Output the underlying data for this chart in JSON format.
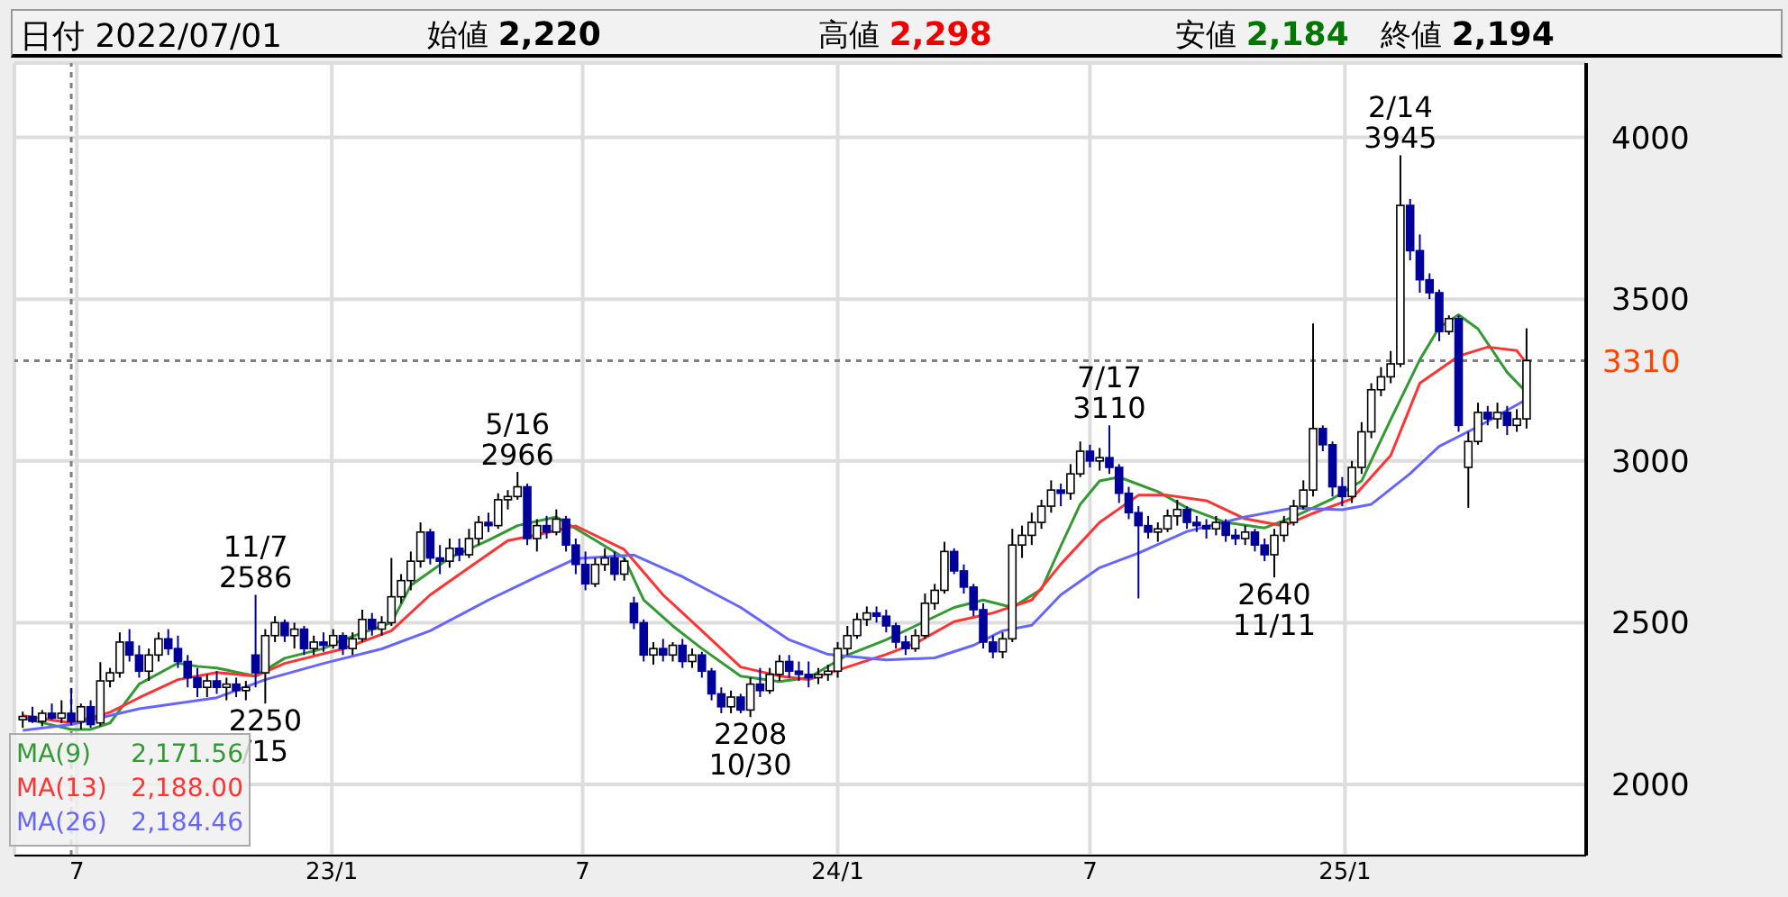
{
  "chart_data": {
    "type": "candlestick",
    "title": "日付 2022/07/01",
    "colors": [
      "#ffffff",
      "#00009a",
      "#ffffff",
      "#00009a",
      "#ffffff",
      "#00009a",
      "#ffffff",
      "#00009a",
      "#ffffff",
      "#ffffff",
      "#ffffff",
      "#00009a",
      "#00009a",
      "#ffffff",
      "#ffffff",
      "#00009a",
      "#00009a",
      "#00009a",
      "#00009a",
      "#ffffff",
      "#00009a",
      "#ffffff",
      "#00009a",
      "#ffffff",
      "#00009a",
      "#ffffff",
      "#ffffff",
      "#00009a",
      "#ffffff",
      "#00009a",
      "#ffffff",
      "#00009a",
      "#ffffff",
      "#00009a",
      "#ffffff",
      "#ffffff",
      "#00009a",
      "#ffffff",
      "#ffffff",
      "#ffffff",
      "#ffffff",
      "#ffffff",
      "#00009a",
      "#00009a",
      "#ffffff",
      "#00009a",
      "#ffffff",
      "#ffffff",
      "#00009a",
      "#ffffff",
      "#ffffff",
      "#ffffff",
      "#00009a",
      "#ffffff",
      "#00009a",
      "#ffffff",
      "#00009a",
      "#00009a",
      "#00009a",
      "#ffffff",
      "#ffffff",
      "#00009a",
      "#ffffff",
      "#00009a",
      "#00009a",
      "#ffffff",
      "#00009a",
      "#ffffff",
      "#00009a",
      "#ffffff",
      "#00009a",
      "#00009a",
      "#00009a",
      "#ffffff",
      "#00009a",
      "#ffffff",
      "#00009a",
      "#ffffff",
      "#ffffff",
      "#00009a",
      "#00009a",
      "#00009a",
      "#ffffff",
      "#ffffff",
      "#ffffff",
      "#ffffff",
      "#ffffff",
      "#ffffff",
      "#00009a",
      "#00009a",
      "#00009a",
      "#00009a",
      "#ffffff",
      "#ffffff",
      "#ffffff",
      "#ffffff",
      "#00009a",
      "#00009a",
      "#00009a",
      "#00009a",
      "#00009a",
      "#ffffff",
      "#ffffff",
      "#ffffff",
      "#ffffff",
      "#ffffff",
      "#ffffff",
      "#00009a",
      "#ffffff",
      "#ffffff",
      "#00009a",
      "#ffffff",
      "#00009a",
      "#00009a",
      "#00009a",
      "#00009a",
      "#00009a",
      "#ffffff",
      "#ffffff",
      "#ffffff",
      "#00009a",
      "#00009a",
      "#00009a",
      "#ffffff",
      "#00009a",
      "#00009a",
      "#ffffff",
      "#00009a",
      "#00009a",
      "#ffffff",
      "#ffffff",
      "#ffffff",
      "#ffffff",
      "#ffffff",
      "#00009a",
      "#00009a",
      "#00009a",
      "#ffffff",
      "#ffffff",
      "#ffffff",
      "#ffffff",
      "#ffffff",
      "#ffffff",
      "#00009a",
      "#00009a",
      "#00009a",
      "#00009a",
      "#ffffff",
      "#00009a",
      "#ffffff",
      "#ffffff",
      "#00009a",
      "#ffffff",
      "#00009a",
      "#ffffff",
      "#ffffff"
    ],
    "x": [
      "2022-05-23",
      "2022-05-30",
      "2022-06-06",
      "2022-06-13",
      "2022-06-20",
      "2022-06-27",
      "2022-07-04",
      "2022-07-11",
      "2022-07-18",
      "2022-07-25",
      "2022-08-01",
      "2022-08-08",
      "2022-08-15",
      "2022-08-22",
      "2022-08-29",
      "2022-09-05",
      "2022-09-12",
      "2022-09-19",
      "2022-09-26",
      "2022-10-03",
      "2022-10-10",
      "2022-10-17",
      "2022-10-24",
      "2022-10-31",
      "2022-11-07",
      "2022-11-14",
      "2022-11-21",
      "2022-11-28",
      "2022-12-05",
      "2022-12-12",
      "2022-12-19",
      "2022-12-26",
      "2023-01-02",
      "2023-01-09",
      "2023-01-16",
      "2023-01-23",
      "2023-01-30",
      "2023-02-06",
      "2023-02-13",
      "2023-02-20",
      "2023-02-27",
      "2023-03-06",
      "2023-03-13",
      "2023-03-20",
      "2023-03-27",
      "2023-04-03",
      "2023-04-10",
      "2023-04-17",
      "2023-04-24",
      "2023-05-01",
      "2023-05-08",
      "2023-05-15",
      "2023-05-22",
      "2023-05-29",
      "2023-06-05",
      "2023-06-12",
      "2023-06-19",
      "2023-06-26",
      "2023-07-03",
      "2023-07-10",
      "2023-07-17",
      "2023-07-24",
      "2023-07-31",
      "2023-08-07",
      "2023-08-14",
      "2023-08-21",
      "2023-08-28",
      "2023-09-04",
      "2023-09-11",
      "2023-09-18",
      "2023-09-25",
      "2023-10-02",
      "2023-10-09",
      "2023-10-16",
      "2023-10-23",
      "2023-10-30",
      "2023-11-06",
      "2023-11-13",
      "2023-11-20",
      "2023-11-27",
      "2023-12-04",
      "2023-12-11",
      "2023-12-18",
      "2023-12-25",
      "2024-01-01",
      "2024-01-08",
      "2024-01-15",
      "2024-01-22",
      "2024-01-29",
      "2024-02-05",
      "2024-02-12",
      "2024-02-19",
      "2024-02-26",
      "2024-03-04",
      "2024-03-11",
      "2024-03-18",
      "2024-03-25",
      "2024-04-01",
      "2024-04-08",
      "2024-04-15",
      "2024-04-22",
      "2024-04-29",
      "2024-05-06",
      "2024-05-13",
      "2024-05-20",
      "2024-05-27",
      "2024-06-03",
      "2024-06-10",
      "2024-06-17",
      "2024-06-24",
      "2024-07-01",
      "2024-07-08",
      "2024-07-15",
      "2024-07-22",
      "2024-07-29",
      "2024-08-05",
      "2024-08-12",
      "2024-08-19",
      "2024-08-26",
      "2024-09-02",
      "2024-09-09",
      "2024-09-16",
      "2024-09-23",
      "2024-09-30",
      "2024-10-07",
      "2024-10-14",
      "2024-10-21",
      "2024-10-28",
      "2024-11-04",
      "2024-11-11",
      "2024-11-18",
      "2024-11-25",
      "2024-12-02",
      "2024-12-09",
      "2024-12-16",
      "2024-12-23",
      "2024-12-30",
      "2025-01-06",
      "2025-01-13",
      "2025-01-20",
      "2025-01-27",
      "2025-02-03",
      "2025-02-10",
      "2025-02-17",
      "2025-02-24",
      "2025-03-03",
      "2025-03-10",
      "2025-03-17",
      "2025-03-24",
      "2025-03-31",
      "2025-04-07",
      "2025-04-14",
      "2025-04-21",
      "2025-04-28",
      "2025-05-05",
      "2025-05-12"
    ],
    "ohlc": [
      [
        2200,
        2225,
        2175,
        2210
      ],
      [
        2210,
        2240,
        2190,
        2195
      ],
      [
        2195,
        2230,
        2180,
        2220
      ],
      [
        2220,
        2250,
        2200,
        2205
      ],
      [
        2205,
        2260,
        2190,
        2220
      ],
      [
        2220,
        2298,
        2184,
        2194
      ],
      [
        2194,
        2250,
        2170,
        2240
      ],
      [
        2240,
        2260,
        2175,
        2185
      ],
      [
        2190,
        2378,
        2180,
        2320
      ],
      [
        2320,
        2360,
        2300,
        2345
      ],
      [
        2345,
        2470,
        2330,
        2440
      ],
      [
        2440,
        2480,
        2380,
        2400
      ],
      [
        2400,
        2430,
        2330,
        2350
      ],
      [
        2350,
        2420,
        2320,
        2400
      ],
      [
        2400,
        2470,
        2380,
        2450
      ],
      [
        2450,
        2480,
        2400,
        2420
      ],
      [
        2420,
        2460,
        2360,
        2380
      ],
      [
        2380,
        2400,
        2300,
        2330
      ],
      [
        2330,
        2360,
        2270,
        2300
      ],
      [
        2300,
        2340,
        2270,
        2320
      ],
      [
        2320,
        2350,
        2280,
        2300
      ],
      [
        2300,
        2330,
        2260,
        2310
      ],
      [
        2310,
        2330,
        2270,
        2290
      ],
      [
        2290,
        2320,
        2260,
        2300
      ],
      [
        2400,
        2586,
        2300,
        2345
      ],
      [
        2345,
        2480,
        2250,
        2460
      ],
      [
        2460,
        2520,
        2440,
        2500
      ],
      [
        2500,
        2510,
        2440,
        2460
      ],
      [
        2460,
        2500,
        2420,
        2480
      ],
      [
        2480,
        2490,
        2400,
        2420
      ],
      [
        2420,
        2460,
        2400,
        2440
      ],
      [
        2440,
        2470,
        2410,
        2430
      ],
      [
        2430,
        2480,
        2420,
        2460
      ],
      [
        2460,
        2470,
        2400,
        2420
      ],
      [
        2420,
        2470,
        2400,
        2450
      ],
      [
        2450,
        2540,
        2440,
        2510
      ],
      [
        2510,
        2530,
        2460,
        2480
      ],
      [
        2480,
        2520,
        2460,
        2500
      ],
      [
        2500,
        2700,
        2490,
        2580
      ],
      [
        2580,
        2650,
        2560,
        2630
      ],
      [
        2630,
        2720,
        2600,
        2690
      ],
      [
        2690,
        2810,
        2670,
        2780
      ],
      [
        2780,
        2790,
        2680,
        2700
      ],
      [
        2700,
        2740,
        2650,
        2690
      ],
      [
        2690,
        2760,
        2670,
        2730
      ],
      [
        2730,
        2760,
        2690,
        2710
      ],
      [
        2710,
        2790,
        2700,
        2760
      ],
      [
        2760,
        2830,
        2740,
        2810
      ],
      [
        2810,
        2840,
        2780,
        2800
      ],
      [
        2800,
        2900,
        2790,
        2880
      ],
      [
        2880,
        2910,
        2850,
        2890
      ],
      [
        2890,
        2966,
        2880,
        2920
      ],
      [
        2920,
        2930,
        2740,
        2760
      ],
      [
        2760,
        2820,
        2720,
        2800
      ],
      [
        2800,
        2830,
        2760,
        2780
      ],
      [
        2780,
        2850,
        2770,
        2820
      ],
      [
        2820,
        2830,
        2720,
        2740
      ],
      [
        2740,
        2760,
        2650,
        2680
      ],
      [
        2680,
        2720,
        2600,
        2620
      ],
      [
        2620,
        2700,
        2610,
        2680
      ],
      [
        2680,
        2730,
        2660,
        2700
      ],
      [
        2700,
        2720,
        2630,
        2650
      ],
      [
        2650,
        2700,
        2630,
        2690
      ],
      [
        2560,
        2580,
        2480,
        2500
      ],
      [
        2500,
        2510,
        2380,
        2400
      ],
      [
        2400,
        2440,
        2370,
        2420
      ],
      [
        2420,
        2450,
        2380,
        2400
      ],
      [
        2400,
        2440,
        2380,
        2430
      ],
      [
        2430,
        2450,
        2360,
        2380
      ],
      [
        2380,
        2420,
        2360,
        2400
      ],
      [
        2400,
        2410,
        2330,
        2350
      ],
      [
        2350,
        2360,
        2260,
        2280
      ],
      [
        2280,
        2300,
        2220,
        2240
      ],
      [
        2240,
        2290,
        2220,
        2270
      ],
      [
        2270,
        2280,
        2220,
        2230
      ],
      [
        2230,
        2330,
        2208,
        2310
      ],
      [
        2310,
        2360,
        2270,
        2290
      ],
      [
        2290,
        2360,
        2280,
        2340
      ],
      [
        2340,
        2400,
        2320,
        2380
      ],
      [
        2380,
        2400,
        2330,
        2350
      ],
      [
        2350,
        2380,
        2320,
        2340
      ],
      [
        2340,
        2380,
        2300,
        2330
      ],
      [
        2330,
        2360,
        2310,
        2340
      ],
      [
        2340,
        2370,
        2320,
        2350
      ],
      [
        2350,
        2440,
        2330,
        2420
      ],
      [
        2420,
        2490,
        2400,
        2460
      ],
      [
        2460,
        2530,
        2450,
        2510
      ],
      [
        2510,
        2550,
        2490,
        2530
      ],
      [
        2530,
        2550,
        2500,
        2520
      ],
      [
        2520,
        2540,
        2470,
        2490
      ],
      [
        2490,
        2500,
        2420,
        2440
      ],
      [
        2440,
        2460,
        2400,
        2420
      ],
      [
        2420,
        2480,
        2410,
        2460
      ],
      [
        2460,
        2590,
        2450,
        2560
      ],
      [
        2560,
        2620,
        2540,
        2600
      ],
      [
        2600,
        2750,
        2590,
        2720
      ],
      [
        2720,
        2730,
        2650,
        2660
      ],
      [
        2660,
        2680,
        2590,
        2610
      ],
      [
        2610,
        2620,
        2520,
        2540
      ],
      [
        2540,
        2560,
        2420,
        2440
      ],
      [
        2440,
        2460,
        2390,
        2410
      ],
      [
        2410,
        2470,
        2390,
        2450
      ],
      [
        2450,
        2790,
        2440,
        2740
      ],
      [
        2740,
        2800,
        2700,
        2770
      ],
      [
        2770,
        2840,
        2740,
        2810
      ],
      [
        2810,
        2880,
        2790,
        2860
      ],
      [
        2860,
        2940,
        2840,
        2910
      ],
      [
        2910,
        2930,
        2860,
        2900
      ],
      [
        2900,
        2990,
        2880,
        2960
      ],
      [
        2960,
        3060,
        2950,
        3030
      ],
      [
        3030,
        3050,
        2980,
        3000
      ],
      [
        3000,
        3040,
        2970,
        3010
      ],
      [
        3010,
        3110,
        2960,
        2980
      ],
      [
        2980,
        2990,
        2870,
        2900
      ],
      [
        2900,
        2920,
        2820,
        2840
      ],
      [
        2840,
        2860,
        2575,
        2800
      ],
      [
        2800,
        2830,
        2760,
        2780
      ],
      [
        2780,
        2810,
        2750,
        2790
      ],
      [
        2790,
        2850,
        2780,
        2830
      ],
      [
        2830,
        2880,
        2800,
        2850
      ],
      [
        2850,
        2860,
        2790,
        2810
      ],
      [
        2810,
        2830,
        2780,
        2800
      ],
      [
        2800,
        2820,
        2760,
        2790
      ],
      [
        2790,
        2830,
        2770,
        2810
      ],
      [
        2810,
        2820,
        2750,
        2770
      ],
      [
        2770,
        2790,
        2740,
        2760
      ],
      [
        2760,
        2800,
        2740,
        2780
      ],
      [
        2780,
        2790,
        2720,
        2740
      ],
      [
        2740,
        2760,
        2690,
        2710
      ],
      [
        2710,
        2790,
        2640,
        2770
      ],
      [
        2770,
        2830,
        2750,
        2810
      ],
      [
        2810,
        2880,
        2800,
        2860
      ],
      [
        2860,
        2940,
        2850,
        2910
      ],
      [
        2910,
        3425,
        2890,
        3100
      ],
      [
        3100,
        3110,
        3030,
        3050
      ],
      [
        3050,
        3060,
        2890,
        2920
      ],
      [
        2920,
        2950,
        2860,
        2890
      ],
      [
        2890,
        3000,
        2870,
        2980
      ],
      [
        2980,
        3120,
        2960,
        3090
      ],
      [
        3090,
        3240,
        3070,
        3220
      ],
      [
        3220,
        3290,
        3200,
        3260
      ],
      [
        3260,
        3340,
        3240,
        3300
      ],
      [
        3300,
        3945,
        3290,
        3790
      ],
      [
        3790,
        3810,
        3620,
        3650
      ],
      [
        3650,
        3700,
        3520,
        3560
      ],
      [
        3560,
        3580,
        3500,
        3520
      ],
      [
        3520,
        3530,
        3370,
        3400
      ],
      [
        3400,
        3450,
        3390,
        3440
      ],
      [
        3440,
        3450,
        3090,
        3110
      ],
      [
        2980,
        3090,
        2855,
        3060
      ],
      [
        3060,
        3180,
        3050,
        3150
      ],
      [
        3150,
        3170,
        3110,
        3130
      ],
      [
        3130,
        3180,
        3100,
        3150
      ],
      [
        3150,
        3170,
        3080,
        3110
      ],
      [
        3110,
        3160,
        3090,
        3130
      ],
      [
        3130,
        3410,
        3100,
        3310
      ]
    ],
    "series": [
      {
        "type": "line",
        "name": "MA(9)",
        "color": "#339933",
        "x": [
          "2022-05-23",
          "2022-06-27",
          "2022-07-11",
          "2022-07-25",
          "2022-08-15",
          "2022-09-12",
          "2022-09-26",
          "2022-10-10",
          "2022-11-07",
          "2022-11-28",
          "2022-12-26",
          "2023-01-09",
          "2023-02-13",
          "2023-02-27",
          "2023-03-27",
          "2023-04-24",
          "2023-05-15",
          "2023-06-12",
          "2023-07-10",
          "2023-07-31",
          "2023-08-14",
          "2023-09-04",
          "2023-09-25",
          "2023-10-23",
          "2023-11-20",
          "2023-12-11",
          "2024-01-08",
          "2024-02-05",
          "2024-02-26",
          "2024-03-25",
          "2024-04-15",
          "2024-05-06",
          "2024-05-27",
          "2024-06-10",
          "2024-06-24",
          "2024-07-08",
          "2024-07-22",
          "2024-08-19",
          "2024-09-09",
          "2024-10-07",
          "2024-11-04",
          "2024-11-25",
          "2024-12-23",
          "2025-01-13",
          "2025-02-03",
          "2025-02-24",
          "2025-03-10",
          "2025-03-24",
          "2025-04-07",
          "2025-04-28",
          "2025-05-12"
        ],
        "values": [
          2205,
          2170,
          2170,
          2190,
          2310,
          2375,
          2365,
          2360,
          2335,
          2390,
          2420,
          2447,
          2500,
          2615,
          2700,
          2755,
          2800,
          2827,
          2755,
          2700,
          2570,
          2490,
          2420,
          2335,
          2318,
          2330,
          2400,
          2447,
          2490,
          2547,
          2570,
          2547,
          2603,
          2737,
          2866,
          2938,
          2950,
          2905,
          2855,
          2810,
          2793,
          2827,
          2883,
          2938,
          3128,
          3313,
          3413,
          3452,
          3408,
          3274,
          3212
        ]
      },
      {
        "type": "line",
        "name": "MA(13)",
        "color": "#ff3333",
        "x": [
          "2022-05-23",
          "2022-06-27",
          "2022-07-25",
          "2022-08-15",
          "2022-09-12",
          "2022-10-10",
          "2022-11-07",
          "2022-11-28",
          "2023-01-09",
          "2023-02-13",
          "2023-03-13",
          "2023-04-10",
          "2023-05-08",
          "2023-05-29",
          "2023-06-26",
          "2023-07-31",
          "2023-08-28",
          "2023-09-25",
          "2023-10-23",
          "2023-11-20",
          "2023-12-11",
          "2024-01-08",
          "2024-02-05",
          "2024-02-26",
          "2024-03-25",
          "2024-04-22",
          "2024-05-20",
          "2024-06-10",
          "2024-07-08",
          "2024-08-05",
          "2024-08-26",
          "2024-09-23",
          "2024-10-21",
          "2024-11-18",
          "2024-12-09",
          "2025-01-06",
          "2025-02-03",
          "2025-02-24",
          "2025-03-24",
          "2025-04-14",
          "2025-05-05",
          "2025-05-12"
        ],
        "values": [
          2212,
          2190,
          2223,
          2268,
          2324,
          2346,
          2335,
          2374,
          2419,
          2475,
          2586,
          2670,
          2754,
          2771,
          2799,
          2726,
          2586,
          2475,
          2363,
          2335,
          2324,
          2363,
          2402,
          2436,
          2503,
          2530,
          2570,
          2681,
          2810,
          2894,
          2894,
          2877,
          2821,
          2799,
          2838,
          2883,
          3017,
          3240,
          3324,
          3352,
          3341,
          3302
        ]
      },
      {
        "type": "line",
        "name": "MA(26)",
        "color": "#6666ff",
        "x": [
          "2022-05-23",
          "2022-06-27",
          "2022-08-15",
          "2022-10-10",
          "2022-11-14",
          "2022-12-26",
          "2023-02-06",
          "2023-03-13",
          "2023-04-24",
          "2023-05-29",
          "2023-06-26",
          "2023-08-07",
          "2023-09-11",
          "2023-10-23",
          "2023-11-27",
          "2023-12-25",
          "2024-02-05",
          "2024-03-11",
          "2024-04-08",
          "2024-04-29",
          "2024-05-20",
          "2024-06-10",
          "2024-07-08",
          "2024-08-05",
          "2024-09-09",
          "2024-10-21",
          "2024-11-25",
          "2024-12-30",
          "2025-01-20",
          "2025-02-17",
          "2025-03-10",
          "2025-04-07",
          "2025-05-12"
        ],
        "values": [
          2167,
          2185,
          2234,
          2268,
          2324,
          2374,
          2419,
          2475,
          2570,
          2642,
          2698,
          2709,
          2642,
          2547,
          2447,
          2402,
          2385,
          2391,
          2430,
          2475,
          2492,
          2586,
          2670,
          2715,
          2782,
          2827,
          2855,
          2849,
          2866,
          2961,
          3045,
          3106,
          3190
        ]
      }
    ],
    "xlim": [
      "2022-05-17",
      "2025-06-24"
    ],
    "xticks": [
      {
        "value": "2022-07-01",
        "label": "7"
      },
      {
        "value": "2023-01-01",
        "label": "23/1"
      },
      {
        "value": "2023-07-01",
        "label": "7"
      },
      {
        "value": "2024-01-01",
        "label": "24/1"
      },
      {
        "value": "2024-07-01",
        "label": "7"
      },
      {
        "value": "2025-01-01",
        "label": "25/1"
      }
    ],
    "ylim": [
      1780,
      4230
    ],
    "yticks": [
      2000,
      2500,
      3000,
      3500,
      4000
    ],
    "grid": true,
    "legend": "bottom left",
    "marker": "none",
    "ref_lines": [
      {
        "axis": "y",
        "value": 3310,
        "label": "3310",
        "color": "#808080",
        "line_style": "dotted"
      },
      {
        "axis": "x",
        "value": "2022-06-27",
        "color": "#808080",
        "line_style": "dotted"
      }
    ],
    "annotations": [
      "始値 2,220",
      "高値 2,298",
      "安値 2,184",
      "終値 2,194",
      "2,171.56",
      "2,188.00",
      "2,184.46",
      {
        "text": "11/7 2586",
        "x": "2022-11-07",
        "y": 2586
      },
      {
        "text": "2250 /15",
        "x": "2022-11-14",
        "y": 2250
      },
      {
        "text": "5/16 2966",
        "x": "2023-05-15",
        "y": 2966
      },
      {
        "text": "2208 10/30",
        "x": "2023-10-30",
        "y": 2208
      },
      {
        "text": "7/17 3110",
        "x": "2024-07-15",
        "y": 3110
      },
      {
        "text": "2640 11/11",
        "x": "2024-11-11",
        "y": 2640
      },
      {
        "text": "2/14 3945",
        "x": "2025-02-10",
        "y": 3945
      }
    ]
  }
}
